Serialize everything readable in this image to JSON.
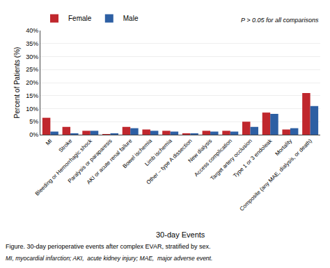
{
  "chart_data": {
    "type": "bar",
    "categories": [
      "MI",
      "Stroke",
      "Bleeding or Hemorrhagic shock",
      "Paralysis or paraparesis",
      "AKI or acute renal failure",
      "Bowel ischemia",
      "Limb ischemia",
      "Other – type A dissection",
      "New dialysis",
      "Access complication",
      "Target artery occlusion",
      "Type 1 or 3 endoleak",
      "Mortality",
      "Composite (any MAE, dialysis, or death)"
    ],
    "series": [
      {
        "name": "Female",
        "color": "#C0272D",
        "values": [
          6.5,
          3.0,
          1.5,
          0.2,
          3.0,
          2.0,
          1.5,
          0.3,
          1.5,
          1.5,
          5.0,
          8.5,
          2.0,
          16.0
        ]
      },
      {
        "name": "Male",
        "color": "#2D5FA3",
        "values": [
          1.2,
          0.3,
          1.5,
          0.5,
          2.5,
          1.5,
          1.2,
          0.3,
          1.2,
          1.2,
          3.0,
          8.0,
          2.5,
          11.0
        ]
      }
    ],
    "ylabel": "Percent of Patients (%)",
    "xlabel": "30-day Events",
    "ylim": [
      0,
      40
    ],
    "yticks": [
      {
        "value": 0,
        "label": "0%"
      },
      {
        "value": 5,
        "label": "5%"
      },
      {
        "value": 10,
        "label": "10%"
      },
      {
        "value": 15,
        "label": "15%"
      },
      {
        "value": 20,
        "label": "20%"
      },
      {
        "value": 25,
        "label": "25%"
      },
      {
        "value": 30,
        "label": "30%"
      },
      {
        "value": 35,
        "label": "35%"
      },
      {
        "value": 40,
        "label": "40%"
      }
    ],
    "grid": true,
    "legend": "top",
    "annotation": "P > 0.05 for all comparisons",
    "caption": "Figure. 30-day perioperative events after complex EVAR, stratified by sex.",
    "note": "MI, myocardial infarction; AKI,  acute kidney injury; MAE,  major adverse event."
  }
}
